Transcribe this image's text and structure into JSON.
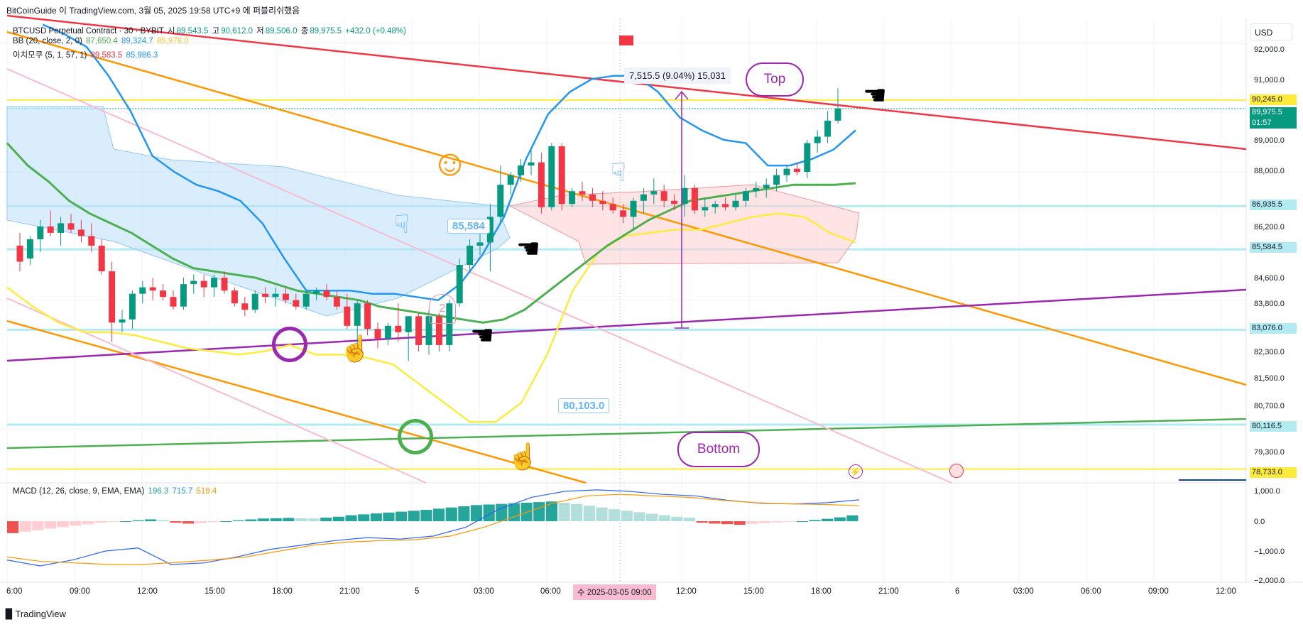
{
  "header": {
    "watermark": "BitCoinGuide 이 TradingView.com, 3월 05, 2025 19:58 UTC+9 에 퍼블리쉬했음",
    "symbol": "BTCUSD Perpetual Contract · 30 · BYBIT",
    "open_label": "시",
    "open": "89,543.5",
    "high_label": "고",
    "high": "90,612.0",
    "low_label": "저",
    "low": "89,506.0",
    "close_label": "종",
    "close": "89,975.5",
    "change": "+432.0 (+0.48%)",
    "bb_label": "BB (20, close, 2, 0)",
    "bb_basis": "87,650.4",
    "bb_upper": "89,324.7",
    "bb_lower": "85,976.0",
    "ind2_label": "이치모쿠 (5, 1, 57, 1)",
    "ind2_a": "89,583.5",
    "ind2_b": "85,986.3",
    "macd_label": "MACD (12, 26, close, 9, EMA, EMA)",
    "macd_hist": "196.3",
    "macd_line": "715.7",
    "macd_signal": "519.4"
  },
  "currency": "USD",
  "branding": "TradingView",
  "price_axis": [
    "92,000.0",
    "91,000.0",
    "89,000.0",
    "88,000.0",
    "86,200.0",
    "84,600.0",
    "83,800.0",
    "82,300.0",
    "81,500.0",
    "80,700.0",
    "79,300.0"
  ],
  "price_tags": [
    {
      "value": "90,245.0",
      "bg": "#ffeb3b",
      "fg": "#131722"
    },
    {
      "value": "86,935.5",
      "bg": "#b2ebf2",
      "fg": "#131722"
    },
    {
      "value": "85,584.5",
      "bg": "#b2ebf2",
      "fg": "#131722"
    },
    {
      "value": "83,076.0",
      "bg": "#b2ebf2",
      "fg": "#131722"
    },
    {
      "value": "80,116.5",
      "bg": "#b2ebf2",
      "fg": "#131722"
    },
    {
      "value": "78,733.0",
      "bg": "#ffeb3b",
      "fg": "#131722"
    }
  ],
  "last_price": {
    "value": "89,975.5",
    "countdown": "01:57",
    "bg": "#089981"
  },
  "macd_axis": [
    "1,000.0",
    "0.0",
    "−1,000.0",
    "−2,000.0"
  ],
  "time_axis": [
    "6:00",
    "09:00",
    "12:00",
    "15:00",
    "18:00",
    "21:00",
    "5",
    "03:00",
    "06:00",
    "수 2025-03-05",
    "09:00",
    "12:00",
    "15:00",
    "18:00",
    "21:00",
    "6",
    "03:00",
    "06:00",
    "09:00",
    "12:00"
  ],
  "annotations": {
    "measure": "7,515.5 (9.04%) 15,031",
    "top": "Top",
    "bottom": "Bottom",
    "note1": "85,584",
    "note2": "80,103.0",
    "marker": "2"
  },
  "colors": {
    "up": "#089981",
    "down": "#f23645",
    "bb_basis": "#4caf50",
    "bb_upper": "#2196f3",
    "bb_lower": "#ffeb3b",
    "trend_red": "#f23645",
    "trend_orange": "#ff9800",
    "trend_purple": "#9c27b0",
    "trend_green": "#4caf50",
    "trend_pink": "#f8bbd0"
  },
  "chart_data": {
    "type": "candlestick",
    "title": "BTCUSD Perpetual Contract · 30 · BYBIT",
    "ylim": [
      78300,
      92700
    ],
    "candles": [
      [
        85700,
        86100,
        84900,
        85200
      ],
      [
        85300,
        86000,
        85100,
        85900
      ],
      [
        85900,
        86500,
        85500,
        86300
      ],
      [
        86300,
        86800,
        86000,
        86100
      ],
      [
        86100,
        86600,
        85700,
        86400
      ],
      [
        86400,
        86700,
        86100,
        86200
      ],
      [
        86200,
        86500,
        85800,
        86000
      ],
      [
        86000,
        86400,
        85500,
        85700
      ],
      [
        85700,
        85900,
        84800,
        84900
      ],
      [
        84900,
        85200,
        82700,
        83300
      ],
      [
        83300,
        83700,
        83000,
        83400
      ],
      [
        83400,
        84300,
        83100,
        84200
      ],
      [
        84200,
        84600,
        83900,
        84400
      ],
      [
        84400,
        84700,
        84000,
        84300
      ],
      [
        84300,
        84500,
        84000,
        84100
      ],
      [
        84100,
        84300,
        83700,
        83800
      ],
      [
        83800,
        84700,
        83700,
        84500
      ],
      [
        84500,
        84800,
        84200,
        84600
      ],
      [
        84600,
        84800,
        84100,
        84400
      ],
      [
        84400,
        84800,
        84100,
        84700
      ],
      [
        84700,
        84900,
        84200,
        84300
      ],
      [
        84300,
        84400,
        83800,
        83900
      ],
      [
        83900,
        84100,
        83500,
        83700
      ],
      [
        83700,
        84300,
        83600,
        84200
      ],
      [
        84200,
        84400,
        83900,
        84100
      ],
      [
        84100,
        84400,
        83800,
        84200
      ],
      [
        84200,
        84400,
        83900,
        84000
      ],
      [
        84000,
        84200,
        83700,
        83800
      ],
      [
        83800,
        84300,
        83700,
        84200
      ],
      [
        84200,
        84400,
        84000,
        84300
      ],
      [
        84300,
        84500,
        84000,
        84100
      ],
      [
        84100,
        84300,
        83700,
        83800
      ],
      [
        83800,
        84200,
        83100,
        83200
      ],
      [
        83200,
        84000,
        82600,
        83900
      ],
      [
        83900,
        84000,
        82900,
        83100
      ],
      [
        83100,
        83300,
        82500,
        82800
      ],
      [
        82800,
        83300,
        82600,
        83200
      ],
      [
        83200,
        83900,
        82700,
        83000
      ],
      [
        83000,
        83500,
        82100,
        83500
      ],
      [
        83500,
        83600,
        82400,
        82600
      ],
      [
        82600,
        83700,
        82300,
        83500
      ],
      [
        83500,
        83600,
        82400,
        82600
      ],
      [
        82600,
        84000,
        82400,
        83900
      ],
      [
        83900,
        85300,
        83800,
        85100
      ],
      [
        85100,
        85900,
        84900,
        85700
      ],
      [
        85700,
        86100,
        85400,
        85800
      ],
      [
        85800,
        87000,
        84900,
        86600
      ],
      [
        86600,
        88200,
        86400,
        87600
      ],
      [
        87600,
        88000,
        87300,
        87900
      ],
      [
        87900,
        88400,
        87700,
        88200
      ],
      [
        88200,
        88700,
        87900,
        88300
      ],
      [
        88300,
        88600,
        86700,
        86900
      ],
      [
        86900,
        88900,
        86800,
        88800
      ],
      [
        88800,
        88900,
        86800,
        87000
      ],
      [
        87000,
        87500,
        86900,
        87400
      ],
      [
        87400,
        87700,
        87100,
        87300
      ],
      [
        87300,
        87500,
        86900,
        87100
      ],
      [
        87100,
        87400,
        86800,
        87000
      ],
      [
        87000,
        87200,
        86700,
        86800
      ],
      [
        86800,
        87000,
        86400,
        86600
      ],
      [
        86600,
        87200,
        86200,
        87100
      ],
      [
        87100,
        87500,
        86700,
        87300
      ],
      [
        87300,
        87800,
        87000,
        87400
      ],
      [
        87400,
        87600,
        86900,
        87100
      ],
      [
        87100,
        87300,
        86800,
        87000
      ],
      [
        87000,
        87900,
        86600,
        87500
      ],
      [
        87500,
        87600,
        86700,
        86800
      ],
      [
        86800,
        87200,
        86600,
        86900
      ],
      [
        86900,
        87100,
        86700,
        87000
      ],
      [
        87000,
        87200,
        86800,
        86900
      ],
      [
        86900,
        87300,
        86800,
        87100
      ],
      [
        87100,
        87500,
        86900,
        87400
      ],
      [
        87400,
        87700,
        87200,
        87500
      ],
      [
        87500,
        87800,
        87200,
        87600
      ],
      [
        87600,
        88100,
        87400,
        87900
      ],
      [
        87900,
        88200,
        87700,
        88100
      ],
      [
        88100,
        88300,
        87900,
        88000
      ],
      [
        88000,
        89000,
        87800,
        88900
      ],
      [
        88900,
        89300,
        88600,
        89100
      ],
      [
        89100,
        89900,
        88900,
        89600
      ],
      [
        89600,
        90612,
        89506,
        89975.5
      ]
    ],
    "bb_basis": [
      88900,
      88200,
      87700,
      87100,
      86700,
      86400,
      86100,
      85700,
      85300,
      85000,
      84900,
      84800,
      84700,
      84500,
      84300,
      84200,
      84100,
      84000,
      83800,
      83700,
      83600,
      83500,
      83400,
      83300,
      83400,
      83700,
      84200,
      84700,
      85200,
      85700,
      86100,
      86500,
      86800,
      87100,
      87200,
      87300,
      87400,
      87500,
      87600,
      87600,
      87600,
      87650
    ],
    "bb_upper": [
      92600,
      92300,
      91900,
      91000,
      89900,
      88500,
      88000,
      87600,
      87400,
      87100,
      86400,
      85300,
      84300,
      84300,
      84300,
      84200,
      84200,
      84100,
      84000,
      84500,
      85400,
      86600,
      88400,
      89800,
      90500,
      90900,
      91000,
      91000,
      90500,
      89700,
      89300,
      89000,
      88900,
      88200,
      88200,
      88400,
      88700,
      89300
    ],
    "bb_lower": [
      84400,
      83800,
      83300,
      83000,
      83000,
      82900,
      82700,
      82500,
      82400,
      82300,
      82400,
      82600,
      82300,
      82300,
      82200,
      82000,
      81400,
      80800,
      80200,
      80200,
      80800,
      82300,
      84300,
      85500,
      86000,
      86100,
      86200,
      86200,
      86400,
      86600,
      86700,
      86600,
      86100,
      85800
    ],
    "macd_hist": [
      -400,
      -350,
      -300,
      -250,
      -200,
      -150,
      -100,
      -50,
      -20,
      0,
      30,
      60,
      40,
      -50,
      -80,
      -60,
      -30,
      0,
      30,
      60,
      90,
      100,
      110,
      100,
      90,
      120,
      150,
      200,
      230,
      260,
      290,
      320,
      350,
      380,
      420,
      460,
      500,
      540,
      560,
      580,
      600,
      620,
      640,
      660,
      620,
      580,
      520,
      460,
      400,
      350,
      300,
      250,
      200,
      150,
      120,
      -50,
      -80,
      -100,
      -120,
      -90,
      -60,
      -40,
      -20,
      0,
      40,
      80,
      130,
      196.3
    ],
    "macd_line": [
      -1300,
      -1500,
      -1300,
      -1000,
      -900,
      -1450,
      -1400,
      -1200,
      -950,
      -800,
      -650,
      -550,
      -600,
      -500,
      -200,
      400,
      800,
      1000,
      1050,
      1000,
      900,
      850,
      700,
      600,
      580,
      620,
      715.7
    ],
    "macd_signal": [
      -1200,
      -1350,
      -1400,
      -1450,
      -1450,
      -1380,
      -1300,
      -1200,
      -1000,
      -800,
      -700,
      -650,
      -620,
      -500,
      -200,
      200,
      600,
      850,
      900,
      850,
      800,
      700,
      620,
      580,
      560,
      519.4
    ]
  }
}
